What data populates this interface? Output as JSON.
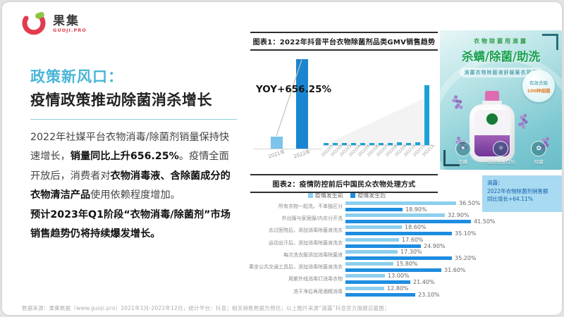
{
  "colors": {
    "accent_cyan": "#49b6d8",
    "bar_light_blue": "#8ccfee",
    "bar_dark_blue": "#1e8de0",
    "monthly_bar_blue": "#1ba1d6",
    "logo_red": "#e23b4e",
    "logo_green": "#8dc63f",
    "caption_bg": "#a8daf1",
    "caption_text": "#1563ae",
    "card_headline_green": "#18a04f"
  },
  "logo": {
    "name": "果集",
    "sub": "GUOJI.PRO"
  },
  "left_panel": {
    "title_line1": "政策新风口：",
    "title_line2": "疫情政策推动除菌消杀增长",
    "p1_parts": [
      "2022年社媒平台衣物消毒/除菌剂销量保持快速增长，",
      "销量同比上升656.25%",
      "。疫情全面开放后，消费者对",
      "衣物消毒液、含除菌成分的衣物清洁产品",
      "使用依赖程度增加。"
    ],
    "p2": "预计2023年Q1阶段“衣物消毒/除菌剂”市场销售趋势仍将持续爆发增长。"
  },
  "chart_data": [
    {
      "type": "bar",
      "title": "图表1：2022年抖音平台衣物除菌剂品类GMV销售趋势",
      "yoy_label": "YOY+656.25%",
      "yearly": {
        "categories": [
          "2021年",
          "2022年"
        ],
        "values": [
          1,
          7.5625
        ],
        "unit": "relative GMV index (2021 = 1, 2022 = +656.25% YoY)",
        "colors": [
          "#7cc4ea",
          "#1a86d2"
        ]
      },
      "monthly": {
        "categories": [
          "202201",
          "202202",
          "202203",
          "202204",
          "202205",
          "202206",
          "202207",
          "202208",
          "202209",
          "202210",
          "202211",
          "202212"
        ],
        "values": [
          3,
          3,
          3,
          3,
          3,
          3,
          3.5,
          4,
          4.5,
          4,
          5,
          100
        ],
        "unit": "relative GMV index (estimated from bar heights)",
        "color": "#1ba1d6"
      }
    },
    {
      "type": "bar",
      "orientation": "horizontal",
      "title": "图表2：疫情防控前后中国民众衣物处理方式",
      "categories": [
        "所有衣物一起洗，不单独区分",
        "外出服与家居服/内衣分开洗",
        "去过医院后，添加消毒除菌液洗衣",
        "运动出汗后，添加消毒除菌液洗衣",
        "每次洗衣服添加消毒除菌液",
        "乘坐公共交通工具后，添加消毒除菌液洗衣",
        "用紫外线消毒灯消毒衣物",
        "洗干净后再用酒精消毒"
      ],
      "series": [
        {
          "name": "疫情发生前",
          "color": "#8ccfee",
          "values": [
            36.5,
            32.9,
            18.6,
            17.6,
            17.3,
            15.8,
            13.0,
            12.8
          ]
        },
        {
          "name": "疫情发生后",
          "color": "#1e8de0",
          "values": [
            18.9,
            41.5,
            35.1,
            24.9,
            35.2,
            31.6,
            21.4,
            23.1
          ]
        }
      ],
      "value_suffix": "%",
      "xlim": [
        0,
        45
      ],
      "legend_position": "top"
    }
  ],
  "product_card": {
    "top_label": "衣物除菌用滴露",
    "headline": "杀螨/除菌/助洗",
    "subtitle": "滴露衣物除菌液舒缓薰衣草香",
    "badge": {
      "line1": "有效去除",
      "line2": "100种细菌"
    },
    "features": [
      {
        "glyph": "✶",
        "label": "克螨"
      },
      {
        "glyph": "☼",
        "label": "无荧光增白剂"
      },
      {
        "glyph": "✿",
        "label": "除菌"
      }
    ],
    "caption": "滴露：\n2022年衣物除菌剂销售额\n同比增长+64.11%"
  },
  "footer": {
    "source": "数据来源：果集数据（www.guoji.pro）2021年1月-2022年12月，统计平台：抖音；相关销售数据为预估；以上图片来源“滴露”抖音官方旗舰店截图；"
  }
}
